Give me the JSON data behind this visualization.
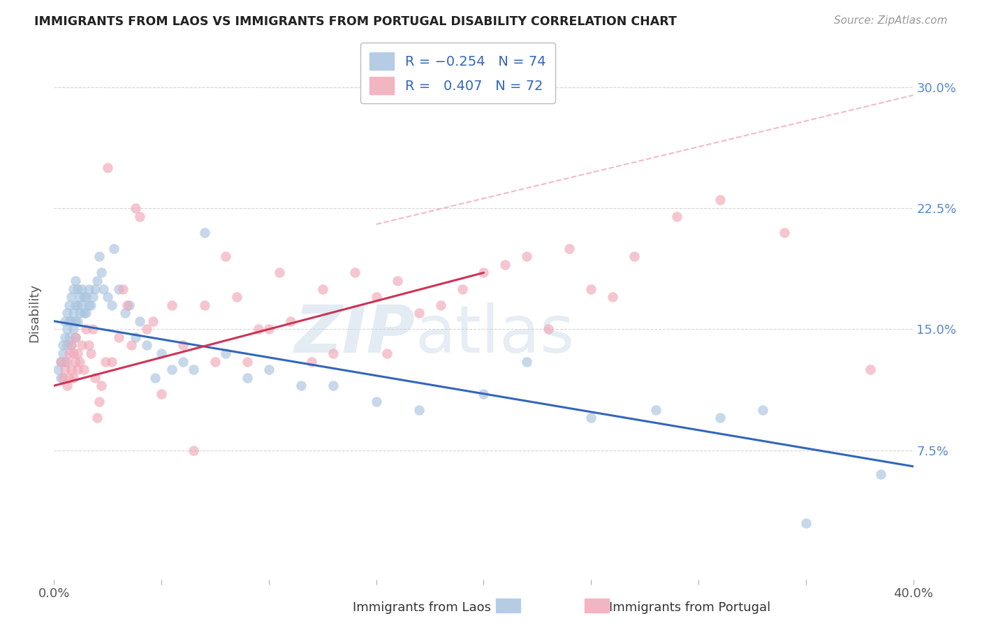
{
  "title": "IMMIGRANTS FROM LAOS VS IMMIGRANTS FROM PORTUGAL DISABILITY CORRELATION CHART",
  "source": "Source: ZipAtlas.com",
  "ylabel": "Disability",
  "xlim": [
    0.0,
    0.4
  ],
  "ylim": [
    -0.005,
    0.325
  ],
  "yticks": [
    0.075,
    0.15,
    0.225,
    0.3
  ],
  "ytick_labels": [
    "7.5%",
    "15.0%",
    "22.5%",
    "30.0%"
  ],
  "laos_R": -0.254,
  "laos_N": 74,
  "portugal_R": 0.407,
  "portugal_N": 72,
  "laos_color": "#a8c4e0",
  "portugal_color": "#f0a8b8",
  "laos_line_color": "#3366bb",
  "portugal_line_color": "#cc3355",
  "watermark_zip": "ZIP",
  "watermark_atlas": "atlas",
  "background_color": "#ffffff",
  "grid_color": "#cccccc",
  "title_color": "#222222",
  "right_tick_color": "#5588cc",
  "laos_x": [
    0.002,
    0.003,
    0.003,
    0.004,
    0.004,
    0.005,
    0.005,
    0.005,
    0.006,
    0.006,
    0.006,
    0.007,
    0.007,
    0.007,
    0.008,
    0.008,
    0.008,
    0.009,
    0.009,
    0.009,
    0.01,
    0.01,
    0.01,
    0.01,
    0.011,
    0.011,
    0.011,
    0.012,
    0.012,
    0.013,
    0.013,
    0.014,
    0.014,
    0.015,
    0.015,
    0.016,
    0.016,
    0.017,
    0.018,
    0.019,
    0.02,
    0.021,
    0.022,
    0.023,
    0.025,
    0.027,
    0.028,
    0.03,
    0.033,
    0.035,
    0.038,
    0.04,
    0.043,
    0.047,
    0.05,
    0.055,
    0.06,
    0.065,
    0.07,
    0.08,
    0.09,
    0.1,
    0.115,
    0.13,
    0.15,
    0.17,
    0.2,
    0.22,
    0.25,
    0.28,
    0.31,
    0.33,
    0.35,
    0.385
  ],
  "laos_y": [
    0.125,
    0.13,
    0.12,
    0.14,
    0.135,
    0.13,
    0.145,
    0.155,
    0.14,
    0.15,
    0.16,
    0.145,
    0.155,
    0.165,
    0.14,
    0.155,
    0.17,
    0.15,
    0.16,
    0.175,
    0.145,
    0.155,
    0.165,
    0.18,
    0.155,
    0.165,
    0.175,
    0.16,
    0.17,
    0.165,
    0.175,
    0.16,
    0.17,
    0.16,
    0.17,
    0.165,
    0.175,
    0.165,
    0.17,
    0.175,
    0.18,
    0.195,
    0.185,
    0.175,
    0.17,
    0.165,
    0.2,
    0.175,
    0.16,
    0.165,
    0.145,
    0.155,
    0.14,
    0.12,
    0.135,
    0.125,
    0.13,
    0.125,
    0.21,
    0.135,
    0.12,
    0.125,
    0.115,
    0.115,
    0.105,
    0.1,
    0.11,
    0.13,
    0.095,
    0.1,
    0.095,
    0.1,
    0.03,
    0.06
  ],
  "portugal_x": [
    0.003,
    0.004,
    0.005,
    0.006,
    0.006,
    0.007,
    0.007,
    0.008,
    0.008,
    0.009,
    0.009,
    0.01,
    0.01,
    0.011,
    0.011,
    0.012,
    0.013,
    0.014,
    0.015,
    0.016,
    0.017,
    0.018,
    0.019,
    0.02,
    0.021,
    0.022,
    0.024,
    0.025,
    0.027,
    0.03,
    0.032,
    0.034,
    0.036,
    0.038,
    0.04,
    0.043,
    0.046,
    0.05,
    0.055,
    0.06,
    0.065,
    0.07,
    0.075,
    0.08,
    0.085,
    0.09,
    0.095,
    0.1,
    0.105,
    0.11,
    0.12,
    0.125,
    0.13,
    0.14,
    0.15,
    0.155,
    0.16,
    0.17,
    0.18,
    0.19,
    0.2,
    0.21,
    0.22,
    0.23,
    0.24,
    0.25,
    0.26,
    0.27,
    0.29,
    0.31,
    0.34,
    0.38
  ],
  "portugal_y": [
    0.13,
    0.12,
    0.125,
    0.115,
    0.13,
    0.12,
    0.135,
    0.125,
    0.14,
    0.12,
    0.135,
    0.13,
    0.145,
    0.125,
    0.135,
    0.13,
    0.14,
    0.125,
    0.15,
    0.14,
    0.135,
    0.15,
    0.12,
    0.095,
    0.105,
    0.115,
    0.13,
    0.25,
    0.13,
    0.145,
    0.175,
    0.165,
    0.14,
    0.225,
    0.22,
    0.15,
    0.155,
    0.11,
    0.165,
    0.14,
    0.075,
    0.165,
    0.13,
    0.195,
    0.17,
    0.13,
    0.15,
    0.15,
    0.185,
    0.155,
    0.13,
    0.175,
    0.135,
    0.185,
    0.17,
    0.135,
    0.18,
    0.16,
    0.165,
    0.175,
    0.185,
    0.19,
    0.195,
    0.15,
    0.2,
    0.175,
    0.17,
    0.195,
    0.22,
    0.23,
    0.21,
    0.125
  ],
  "laos_line_x0": 0.0,
  "laos_line_y0": 0.155,
  "laos_line_x1": 0.4,
  "laos_line_y1": 0.065,
  "portugal_line_x0": 0.0,
  "portugal_line_y0": 0.115,
  "portugal_line_x1": 0.2,
  "portugal_line_y1": 0.185,
  "dashed_line_x0": 0.15,
  "dashed_line_y0": 0.215,
  "dashed_line_x1": 0.4,
  "dashed_line_y1": 0.295
}
